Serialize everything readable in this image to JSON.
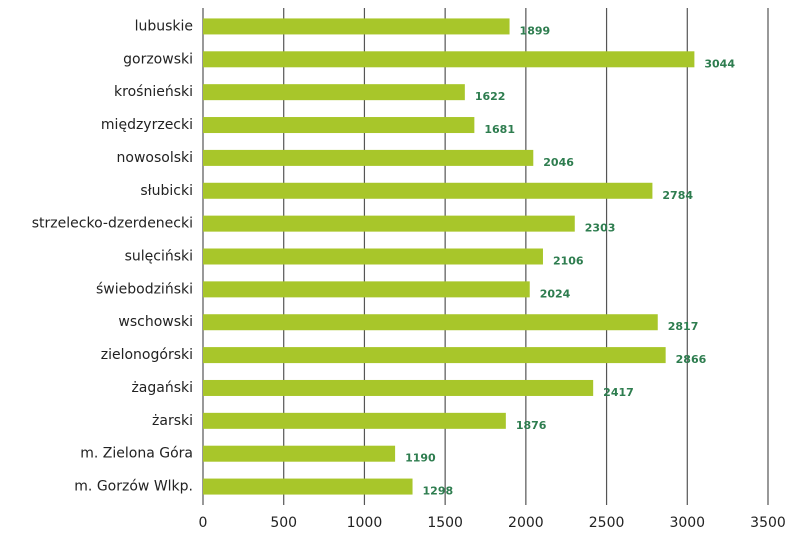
{
  "chart_data": {
    "type": "bar",
    "orientation": "horizontal",
    "categories": [
      "lubuskie",
      "gorzowski",
      "krośnieński",
      "międzyrzecki",
      "nowosolski",
      "słubicki",
      "strzelecko-dzerdenecki",
      "sulęciński",
      "świebodziński",
      "wschowski",
      "zielonogórski",
      "żagański",
      "żarski",
      "m. Zielona Góra",
      "m. Gorzów Wlkp."
    ],
    "values": [
      1899,
      3044,
      1622,
      1681,
      2046,
      2784,
      2303,
      2106,
      2024,
      2817,
      2866,
      2417,
      1876,
      1190,
      1298
    ],
    "color": "#a8c62a",
    "label_color": "#2e7d4f",
    "xlim": [
      0,
      3500
    ],
    "xticks": [
      0,
      500,
      1000,
      1500,
      2000,
      2500,
      3000,
      3500
    ],
    "grid": true
  }
}
